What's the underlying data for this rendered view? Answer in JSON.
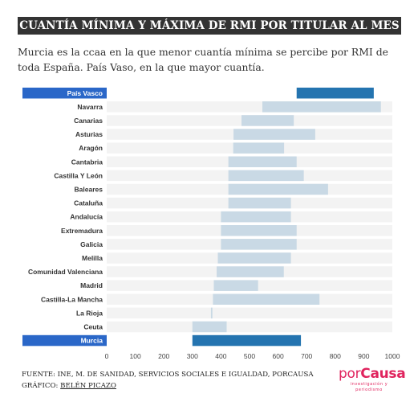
{
  "header": {
    "title": "CUANTÍA MÍNIMA Y MÁXIMA DE RMI POR TITULAR AL MES",
    "subtitle": "Murcia es la ccaa en la que menor cuantía mínima se percibe por RMI de toda España. País Vaso, en la que mayor cuantía."
  },
  "footer": {
    "source": "FUENTE: INE, M. DE SANIDAD, SERVICIOS SOCIALES E IGUALDAD, PORCAUSA",
    "credit_label": "GRÁFICO:",
    "credit_name": "BELÉN PICAZO"
  },
  "logo": {
    "part1": "por",
    "part2": "Causa",
    "tagline": "investigación y periodismo"
  },
  "colors": {
    "range_bar": "#c9d9e5",
    "highlight_bar": "#2474b0",
    "highlight_label_bg": "#2a67c8",
    "row_background": "#f3f3f3",
    "title_bg": "#333333",
    "logo": "#e0245e"
  },
  "chart_data": {
    "type": "bar",
    "orientation": "horizontal",
    "subtype": "floating-range",
    "xlim": [
      0,
      1000
    ],
    "x_ticks": [
      0,
      100,
      200,
      300,
      400,
      500,
      600,
      700,
      800,
      900,
      1000
    ],
    "grid": false,
    "categories": [
      "País Vasco",
      "Navarra",
      "Canarias",
      "Asturias",
      "Aragón",
      "Cantabria",
      "Castilla Y León",
      "Baleares",
      "Cataluña",
      "Andalucía",
      "Extremadura",
      "Galicia",
      "Melilla",
      "Comunidad Valenciana",
      "Madrid",
      "Castilla-La Mancha",
      "La Rioja",
      "Ceuta",
      "Murcia"
    ],
    "min": [
      665,
      545,
      472,
      444,
      443,
      426,
      426,
      426,
      426,
      400,
      400,
      400,
      389,
      385,
      375,
      372,
      365,
      300,
      300
    ],
    "max": [
      935,
      960,
      655,
      730,
      621,
      665,
      690,
      775,
      645,
      645,
      665,
      665,
      645,
      620,
      530,
      745,
      370,
      420,
      680
    ],
    "highlighted": [
      "País Vasco",
      "Murcia"
    ]
  }
}
